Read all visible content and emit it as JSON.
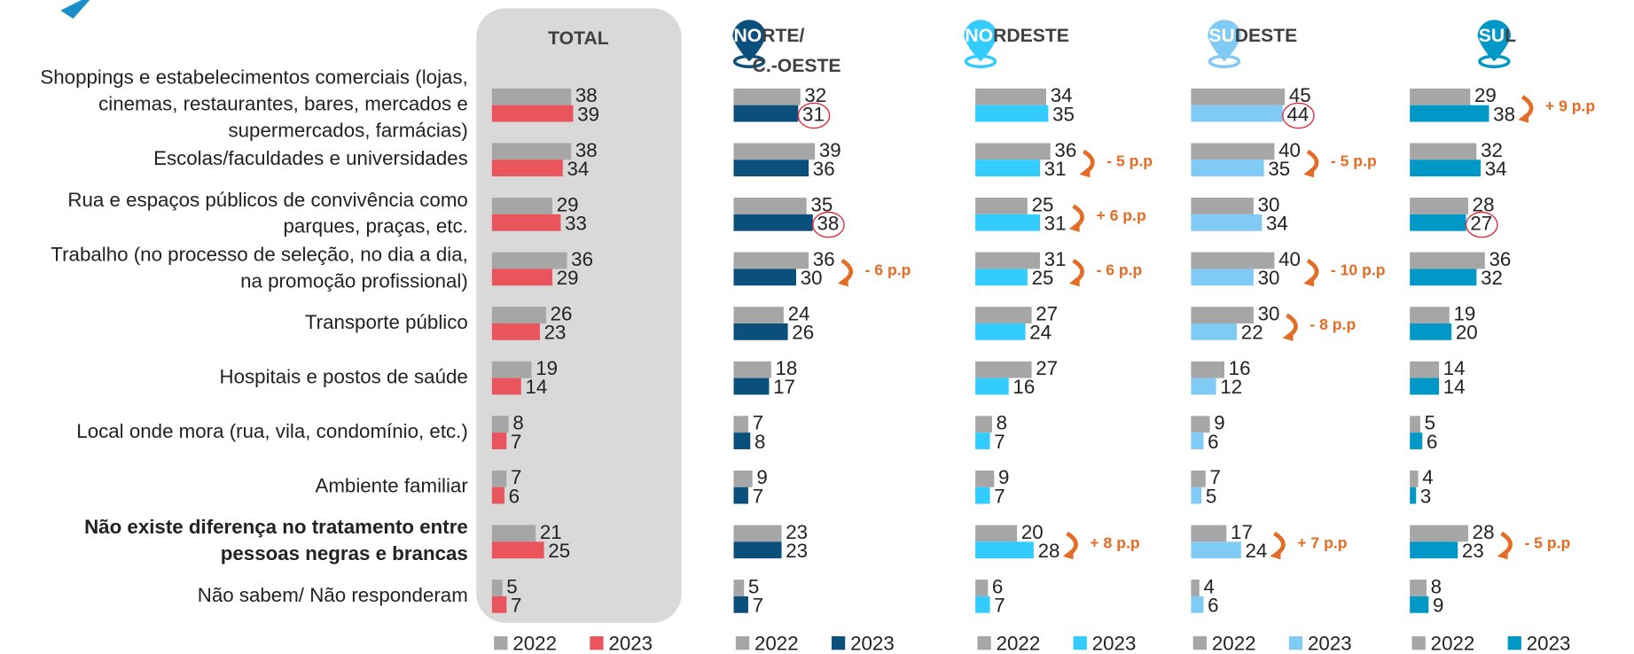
{
  "chart_data": [
    {
      "type": "bar",
      "title": "TOTAL",
      "categories": [
        [
          "Shoppings e estabelecimentos comerciais (lojas,",
          "cinemas, restaurantes, bares, mercados e",
          "supermercados, farmácias)"
        ],
        [
          "Escolas/faculdades e universidades"
        ],
        [
          "Rua e espaços públicos de convivência como",
          "parques, praças, etc."
        ],
        [
          "Trabalho (no processo de seleção, no dia a dia,",
          "na promoção profissional)"
        ],
        [
          "Transporte público"
        ],
        [
          "Hospitais e postos de saúde"
        ],
        [
          "Local onde mora (rua, vila, condomínio, etc.)"
        ],
        [
          "Ambiente familiar"
        ],
        [
          "Não existe diferença no tratamento entre",
          "pessoas negras e brancas"
        ],
        [
          "Não sabem/ Não responderam"
        ]
      ],
      "bold_categories": [
        8
      ],
      "series": [
        {
          "name": "2022",
          "color": "#a6a6a6",
          "values": [
            38,
            38,
            29,
            36,
            26,
            19,
            8,
            7,
            21,
            5
          ]
        },
        {
          "name": "2023",
          "color": "#e9545d",
          "values": [
            39,
            34,
            33,
            29,
            23,
            14,
            7,
            6,
            25,
            7
          ]
        }
      ],
      "annotations": [],
      "circled": []
    },
    {
      "type": "bar",
      "title": [
        "NORTE/",
        "C.-OESTE"
      ],
      "pin_color": "#0b4f7c",
      "series": [
        {
          "name": "2022",
          "color": "#a6a6a6",
          "values": [
            32,
            39,
            35,
            36,
            24,
            18,
            7,
            9,
            23,
            5
          ]
        },
        {
          "name": "2023",
          "color": "#0b4f7c",
          "values": [
            31,
            36,
            38,
            30,
            26,
            17,
            8,
            7,
            23,
            7
          ]
        }
      ],
      "annotations": [
        {
          "row": 3,
          "text": "- 6 p.p"
        }
      ],
      "circled": [
        0,
        2
      ]
    },
    {
      "type": "bar",
      "title": "NORDESTE",
      "pin_color": "#33ccff",
      "series": [
        {
          "name": "2022",
          "color": "#a6a6a6",
          "values": [
            34,
            36,
            25,
            31,
            27,
            27,
            8,
            9,
            20,
            6
          ]
        },
        {
          "name": "2023",
          "color": "#33ccff",
          "values": [
            35,
            31,
            31,
            25,
            24,
            16,
            7,
            7,
            28,
            7
          ]
        }
      ],
      "annotations": [
        {
          "row": 1,
          "text": "- 5 p.p"
        },
        {
          "row": 2,
          "text": "+ 6 p.p"
        },
        {
          "row": 3,
          "text": "- 6 p.p"
        },
        {
          "row": 8,
          "text": "+ 8 p.p"
        }
      ],
      "circled": []
    },
    {
      "type": "bar",
      "title": "SUDESTE",
      "pin_color": "#7fcbf5",
      "series": [
        {
          "name": "2022",
          "color": "#a6a6a6",
          "values": [
            45,
            40,
            30,
            40,
            30,
            16,
            9,
            7,
            17,
            4
          ]
        },
        {
          "name": "2023",
          "color": "#7fcbf5",
          "values": [
            44,
            35,
            34,
            30,
            22,
            12,
            6,
            5,
            24,
            6
          ]
        }
      ],
      "annotations": [
        {
          "row": 1,
          "text": "- 5 p.p"
        },
        {
          "row": 3,
          "text": "- 10 p.p"
        },
        {
          "row": 4,
          "text": "- 8 p.p"
        },
        {
          "row": 8,
          "text": "+ 7 p.p"
        }
      ],
      "circled": [
        0
      ]
    },
    {
      "type": "bar",
      "title": "SUL",
      "pin_color": "#0098c7",
      "series": [
        {
          "name": "2022",
          "color": "#a6a6a6",
          "values": [
            29,
            32,
            28,
            36,
            19,
            14,
            5,
            4,
            28,
            8
          ]
        },
        {
          "name": "2023",
          "color": "#0098c7",
          "values": [
            38,
            34,
            27,
            32,
            20,
            14,
            6,
            3,
            23,
            9
          ]
        }
      ],
      "annotations": [
        {
          "row": 0,
          "text": "+ 9 p.p"
        },
        {
          "row": 8,
          "text": "- 5 p.p"
        }
      ],
      "circled": [
        2
      ]
    }
  ]
}
